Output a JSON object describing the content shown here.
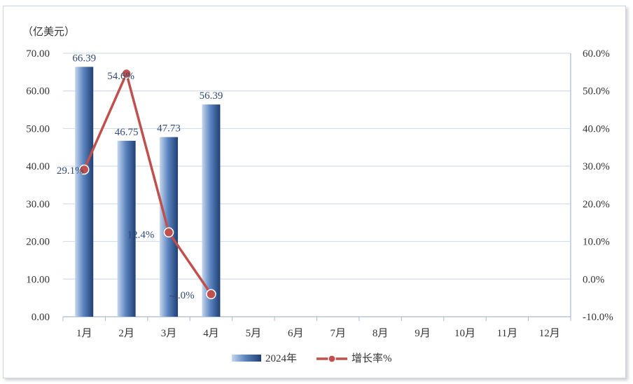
{
  "chart_data": {
    "type": "bar",
    "unit_label": "（亿美元）",
    "categories": [
      "1月",
      "2月",
      "3月",
      "4月",
      "5月",
      "6月",
      "7月",
      "8月",
      "9月",
      "10月",
      "11月",
      "12月"
    ],
    "series": [
      {
        "name": "2024年",
        "type": "bar",
        "axis": "left",
        "values": [
          66.39,
          46.75,
          47.73,
          56.39,
          null,
          null,
          null,
          null,
          null,
          null,
          null,
          null
        ],
        "labels": [
          "66.39",
          "46.75",
          "47.73",
          "56.39"
        ],
        "color": "#3a64a0"
      },
      {
        "name": "增长率%",
        "type": "line",
        "axis": "right",
        "values": [
          29.1,
          54.6,
          12.4,
          -4.0,
          null,
          null,
          null,
          null,
          null,
          null,
          null,
          null
        ],
        "labels": [
          "29.1%",
          "54.6%",
          "12.4%",
          "-4.0%"
        ],
        "color": "#c0504d"
      }
    ],
    "left_axis": {
      "range": [
        0,
        70
      ],
      "ticks": [
        "0.00",
        "10.00",
        "20.00",
        "30.00",
        "40.00",
        "50.00",
        "60.00",
        "70.00"
      ]
    },
    "right_axis": {
      "range": [
        -10,
        60
      ],
      "ticks": [
        "-10.0%",
        "0.0%",
        "10.0%",
        "20.0%",
        "30.0%",
        "40.0%",
        "50.0%",
        "60.0%"
      ]
    },
    "grid": true,
    "legend_position": "bottom"
  }
}
